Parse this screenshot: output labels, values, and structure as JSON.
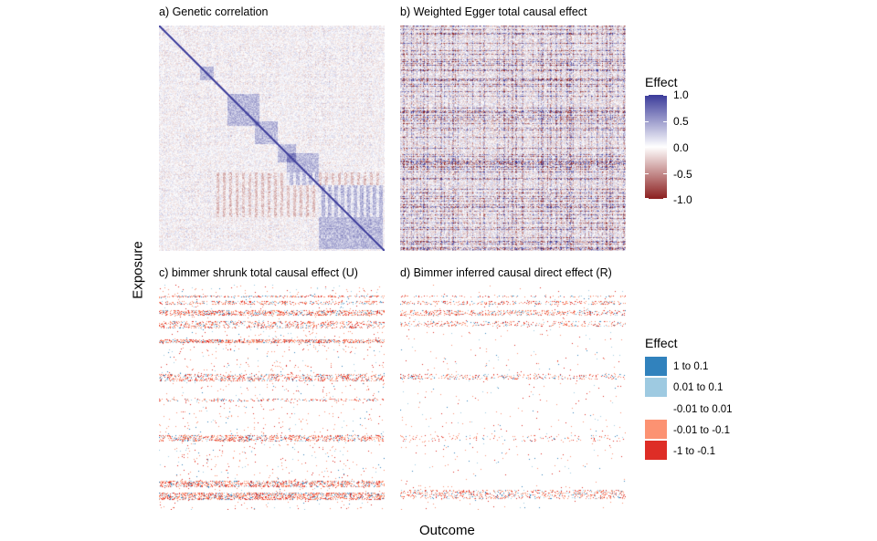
{
  "xlabel": "Outcome",
  "ylabel": "Exposure",
  "continuous_legend": {
    "title": "Effect",
    "ticks": [
      "1.0",
      "0.5",
      "0.0",
      "-0.5",
      "-1.0"
    ],
    "low_color": "#8b1e1e",
    "mid_color": "#ffffff",
    "high_color": "#3b3b9a"
  },
  "discrete_legend": {
    "title": "Effect",
    "items": [
      {
        "label": "1 to 0.1",
        "color": "#3182bd"
      },
      {
        "label": "0.01 to 0.1",
        "color": "#9ecae1"
      },
      {
        "label": "-0.01 to 0.01",
        "color": "#ffffff"
      },
      {
        "label": "-0.01 to -0.1",
        "color": "#fc9272"
      },
      {
        "label": "-1 to -0.1",
        "color": "#de2d26"
      }
    ]
  },
  "chart_data": [
    {
      "type": "heatmap",
      "title": "a) Genetic correlation",
      "xlabel": "Outcome",
      "ylabel": "Exposure",
      "value_range": [
        -1,
        1
      ],
      "pattern": "symmetric correlation matrix with blue diagonal and block structure"
    },
    {
      "type": "heatmap",
      "title": "b) Weighted Egger total causal effect",
      "xlabel": "Outcome",
      "ylabel": "Exposure",
      "value_range": [
        -1,
        1
      ],
      "pattern": "dense noisy matrix"
    },
    {
      "type": "heatmap",
      "title": "c) bimmer shrunk total causal effect (U)",
      "xlabel": "Outcome",
      "ylabel": "Exposure",
      "categories": [
        "1 to 0.1",
        "0.01 to 0.1",
        "-0.01 to 0.01",
        "-0.01 to -0.1",
        "-1 to -0.1"
      ],
      "pattern": "sparse matrix with non-zero effects concentrated in a few exposure rows"
    },
    {
      "type": "heatmap",
      "title": "d) Bimmer inferred causal direct effect (R)",
      "xlabel": "Outcome",
      "ylabel": "Exposure",
      "categories": [
        "1 to 0.1",
        "0.01 to 0.1",
        "-0.01 to 0.01",
        "-0.01 to -0.1",
        "-1 to -0.1"
      ],
      "pattern": "sparser matrix with non-zero effects in a few exposure rows"
    }
  ]
}
